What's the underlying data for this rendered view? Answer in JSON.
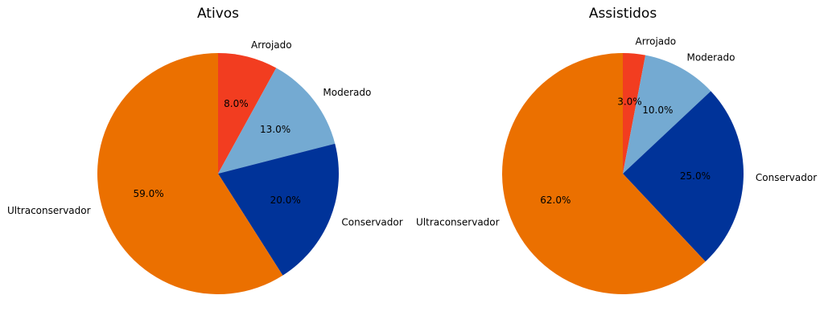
{
  "chart_data": [
    {
      "type": "pie",
      "title": "Ativos",
      "slices": [
        {
          "label": "Arrojado",
          "value": 8.0,
          "pct_text": "8.0%",
          "color": "#f23d20"
        },
        {
          "label": "Moderado",
          "value": 13.0,
          "pct_text": "13.0%",
          "color": "#74aad2"
        },
        {
          "label": "Conservador",
          "value": 20.0,
          "pct_text": "20.0%",
          "color": "#003399"
        },
        {
          "label": "Ultraconservador",
          "value": 59.0,
          "pct_text": "59.0%",
          "color": "#eb7000"
        }
      ],
      "start_angle_deg": 90,
      "direction": "clockwise"
    },
    {
      "type": "pie",
      "title": "Assistidos",
      "slices": [
        {
          "label": "Arrojado",
          "value": 3.0,
          "pct_text": "3.0%",
          "color": "#f23d20"
        },
        {
          "label": "Moderado",
          "value": 10.0,
          "pct_text": "10.0%",
          "color": "#74aad2"
        },
        {
          "label": "Conservador",
          "value": 25.0,
          "pct_text": "25.0%",
          "color": "#003399"
        },
        {
          "label": "Ultraconservador",
          "value": 62.0,
          "pct_text": "62.0%",
          "color": "#eb7000"
        }
      ],
      "start_angle_deg": 90,
      "direction": "clockwise"
    }
  ]
}
